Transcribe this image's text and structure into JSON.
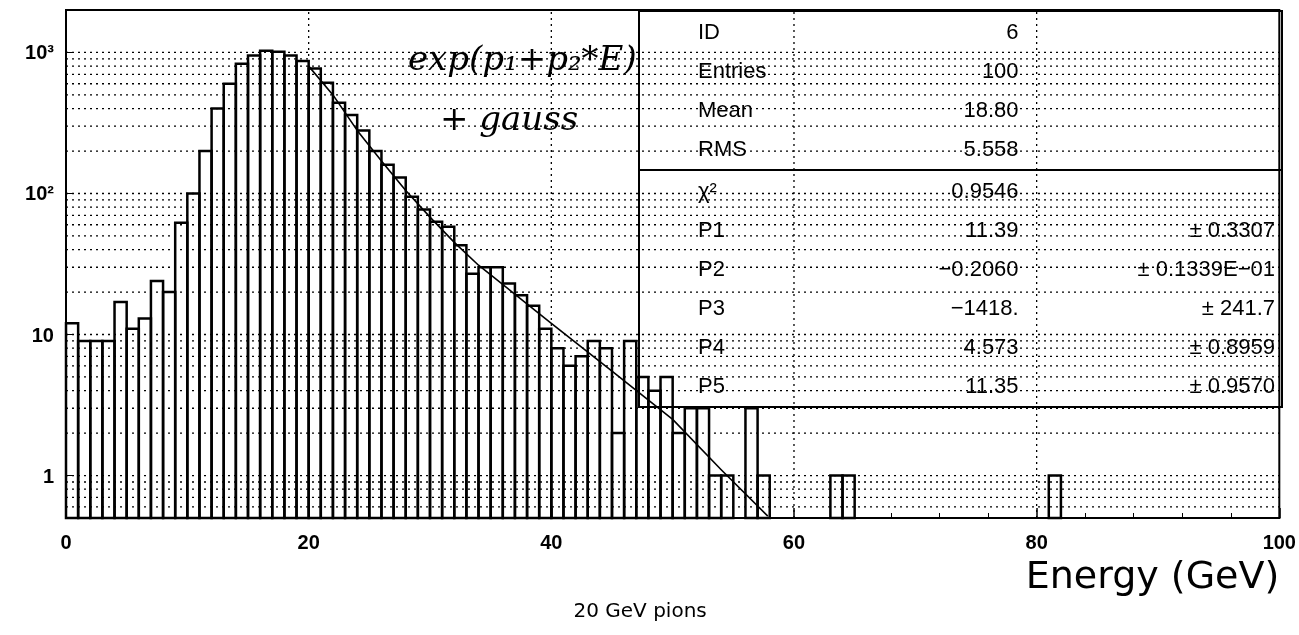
{
  "chart_data": {
    "type": "histogram",
    "xlabel": "Energy (GeV)",
    "bins": [
      0,
      1,
      2,
      3,
      4,
      5,
      6,
      7,
      8,
      9,
      10,
      11,
      12,
      13,
      14,
      15,
      16,
      17,
      18,
      19,
      20,
      21,
      22,
      23,
      24,
      25,
      26,
      27,
      28,
      29,
      30,
      31,
      32,
      33,
      34,
      35,
      36,
      37,
      38,
      39,
      40,
      41,
      42,
      43,
      44,
      45,
      46,
      47,
      48,
      49,
      50,
      51,
      52,
      53,
      54,
      55,
      56,
      57,
      58,
      59,
      60,
      61,
      62,
      63,
      64,
      65,
      66,
      67,
      68,
      69,
      70,
      71,
      72,
      73,
      74,
      75,
      76,
      77,
      78,
      79,
      80,
      81,
      82,
      83,
      84,
      85,
      86,
      87,
      88,
      89,
      90,
      91,
      92,
      93,
      94,
      95,
      96,
      97,
      98,
      99,
      100
    ],
    "values": [
      12,
      9,
      9,
      9,
      17,
      11,
      13,
      24,
      20,
      62,
      100,
      200,
      400,
      600,
      830,
      950,
      1030,
      1010,
      950,
      870,
      770,
      610,
      440,
      360,
      280,
      200,
      160,
      130,
      95,
      77,
      63,
      58,
      43,
      27,
      30,
      30,
      23,
      19,
      16,
      11,
      8,
      6,
      7,
      9,
      8,
      2,
      9,
      5,
      4,
      5,
      2,
      3,
      3,
      1,
      1,
      null,
      3,
      1,
      null,
      null,
      null,
      null,
      null,
      1,
      1,
      null,
      null,
      null,
      null,
      null,
      null,
      null,
      null,
      null,
      null,
      null,
      null,
      null,
      null,
      null,
      null,
      1,
      null,
      null,
      null,
      null,
      null,
      null,
      null,
      null,
      null,
      null,
      null,
      null,
      null,
      null,
      null,
      null,
      null,
      null
    ],
    "color": "#000000",
    "series": [
      {
        "type": "line",
        "color": "#000000",
        "x": [
          20,
          22,
          24,
          26,
          28,
          30,
          32,
          34,
          40,
          45,
          50,
          54,
          57.8
        ],
        "values": [
          800,
          500,
          280,
          170,
          105,
          68,
          45,
          31,
          12,
          5.5,
          2.5,
          1.1,
          0.52
        ]
      }
    ],
    "xlim": [
      0,
      100
    ],
    "xticks": [
      0,
      20,
      40,
      60,
      80,
      100
    ],
    "ylim": [
      0.5,
      2000
    ],
    "yticks": [
      {
        "value": 1,
        "label": "1"
      },
      {
        "value": 10,
        "label": "10"
      },
      {
        "value": 100,
        "label": "10²"
      },
      {
        "value": 1000,
        "label": "10³"
      }
    ],
    "log": "y",
    "grid": true,
    "line_style": "solid",
    "annotations": [
      "exp(p₁+p₂*E)",
      "+ gauss",
      "ID 6",
      "Entries 100",
      "Mean 18.80",
      "RMS 5.558",
      "χ² 0.9546",
      "P1 11.39 ± 0.3307",
      "P2 −0.2060 ± 0.1339E−01",
      "P3 −1418. ± 241.7",
      "P4 4.573 ± 0.8959",
      "P5 11.35 ± 0.9570",
      "20 GeV pions"
    ]
  }
}
